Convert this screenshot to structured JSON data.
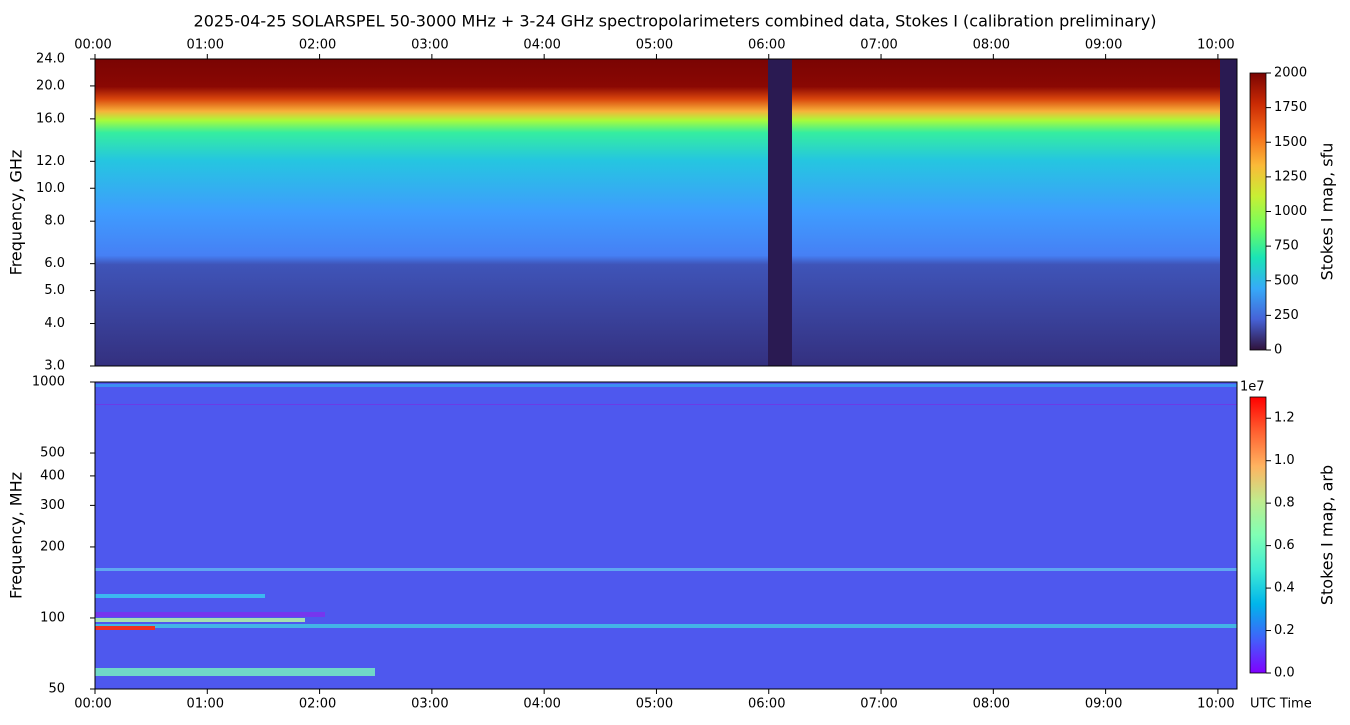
{
  "chart_data": [
    {
      "type": "heatmap",
      "title": "2025-04-25  SOLARSPEL  50-3000 MHz  +  3-24 GHz  spectropolarimeters combined data,  Stokes I  (calibration preliminary)",
      "ylabel": "Frequency, GHz",
      "xlim": [
        0,
        10.17
      ],
      "xaxis_position": "top",
      "xticks": [
        {
          "value": 0,
          "label": "00:00"
        },
        {
          "value": 1,
          "label": "01:00"
        },
        {
          "value": 2,
          "label": "02:00"
        },
        {
          "value": 3,
          "label": "03:00"
        },
        {
          "value": 4,
          "label": "04:00"
        },
        {
          "value": 5,
          "label": "05:00"
        },
        {
          "value": 6,
          "label": "06:00"
        },
        {
          "value": 7,
          "label": "07:00"
        },
        {
          "value": 8,
          "label": "08:00"
        },
        {
          "value": 9,
          "label": "09:00"
        },
        {
          "value": 10,
          "label": "10:00"
        }
      ],
      "ylim": [
        3,
        24
      ],
      "yscale": "log",
      "yticks": [
        {
          "value": 3,
          "label": "3.0"
        },
        {
          "value": 4,
          "label": "4.0"
        },
        {
          "value": 5,
          "label": "5.0"
        },
        {
          "value": 6,
          "label": "6.0"
        },
        {
          "value": 8,
          "label": "8.0"
        },
        {
          "value": 10,
          "label": "10.0"
        },
        {
          "value": 12,
          "label": "12.0"
        },
        {
          "value": 16,
          "label": "16.0"
        },
        {
          "value": 20,
          "label": "20.0"
        },
        {
          "value": 24,
          "label": "24.0"
        }
      ],
      "colorbar": {
        "label": "Stokes I map, sfu",
        "colormap": "turbo",
        "clim": [
          0,
          2000
        ],
        "ticks": [
          0,
          250,
          500,
          750,
          1000,
          1250,
          1500,
          1750,
          2000
        ]
      }
    },
    {
      "type": "heatmap",
      "ylabel": "Frequency, MHz",
      "xlabel": "UTC Time",
      "xlim": [
        0,
        10.17
      ],
      "xaxis_position": "bottom",
      "xticks": [
        {
          "value": 0,
          "label": "00:00"
        },
        {
          "value": 1,
          "label": "01:00"
        },
        {
          "value": 2,
          "label": "02:00"
        },
        {
          "value": 3,
          "label": "03:00"
        },
        {
          "value": 4,
          "label": "04:00"
        },
        {
          "value": 5,
          "label": "05:00"
        },
        {
          "value": 6,
          "label": "06:00"
        },
        {
          "value": 7,
          "label": "07:00"
        },
        {
          "value": 8,
          "label": "08:00"
        },
        {
          "value": 9,
          "label": "09:00"
        },
        {
          "value": 10,
          "label": "10:00"
        }
      ],
      "ylim": [
        50,
        1000
      ],
      "yscale": "log",
      "yticks": [
        50,
        100,
        200,
        300,
        400,
        500,
        1000
      ],
      "colorbar": {
        "label": "Stokes I map, arb",
        "colormap": "rainbow",
        "offset_text": "1e7",
        "clim": [
          0,
          13000000
        ],
        "ticks": [
          {
            "value": 0,
            "label": "0.0"
          },
          {
            "value": 2000000,
            "label": "0.2"
          },
          {
            "value": 4000000,
            "label": "0.4"
          },
          {
            "value": 6000000,
            "label": "0.6"
          },
          {
            "value": 8000000,
            "label": "0.8"
          },
          {
            "value": 10000000,
            "label": "1.0"
          },
          {
            "value": 12000000,
            "label": "1.2"
          }
        ]
      }
    }
  ]
}
